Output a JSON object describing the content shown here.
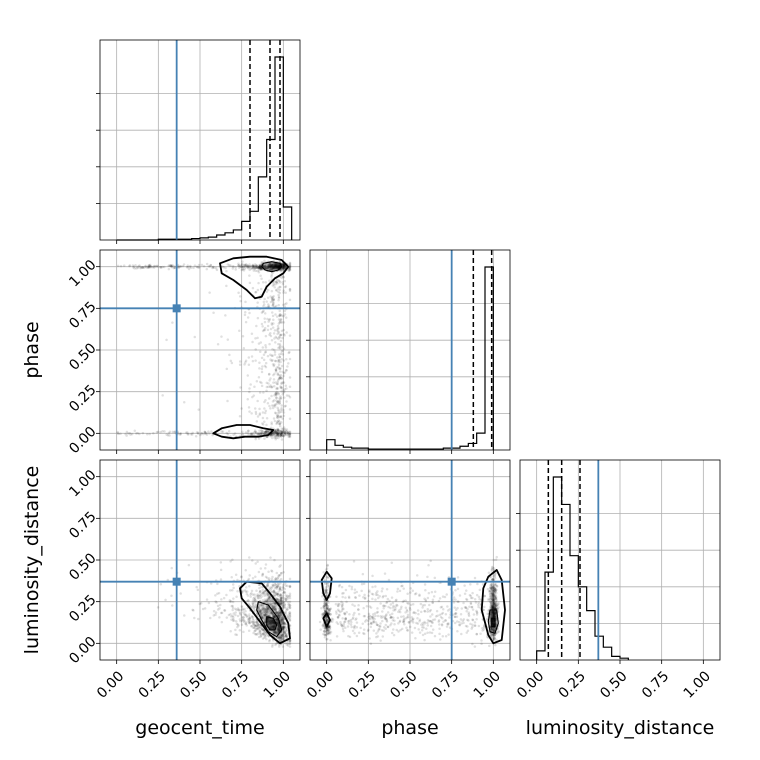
{
  "chart_data": {
    "type": "scatter",
    "kind": "corner-plot",
    "parameters": [
      "geocent_time",
      "phase",
      "luminosity_distance"
    ],
    "truths": {
      "geocent_time": 0.36,
      "phase": 0.75,
      "luminosity_distance": 0.37
    },
    "truth_color": "#4682b4",
    "ticks": [
      0.0,
      0.25,
      0.5,
      0.75,
      1.0
    ],
    "tick_labels": [
      "0.00",
      "0.25",
      "0.50",
      "0.75",
      "1.00"
    ],
    "ranges": {
      "geocent_time": [
        -0.1,
        1.1
      ],
      "phase": [
        -0.1,
        1.1
      ],
      "luminosity_distance": [
        -0.1,
        1.1
      ]
    },
    "histograms": {
      "geocent_time": {
        "bins": [
          0.0,
          0.05,
          0.1,
          0.15,
          0.2,
          0.25,
          0.3,
          0.35,
          0.4,
          0.45,
          0.5,
          0.55,
          0.6,
          0.65,
          0.7,
          0.75,
          0.8,
          0.85,
          0.9,
          0.95,
          1.0,
          1.05
        ],
        "counts": [
          0,
          0,
          0,
          0,
          0,
          1,
          1,
          1,
          1,
          2,
          3,
          4,
          7,
          10,
          14,
          26,
          40,
          88,
          140,
          255,
          46
        ],
        "quantiles": [
          0.8,
          0.92,
          0.98
        ]
      },
      "phase": {
        "bins": [
          0.0,
          0.05,
          0.1,
          0.15,
          0.2,
          0.25,
          0.3,
          0.35,
          0.4,
          0.45,
          0.5,
          0.55,
          0.6,
          0.65,
          0.7,
          0.75,
          0.8,
          0.85,
          0.9,
          0.95,
          1.0
        ],
        "counts": [
          11,
          5,
          3,
          2,
          2,
          1,
          1,
          1,
          1,
          1,
          1,
          1,
          1,
          1,
          2,
          2,
          4,
          7,
          18,
          195
        ],
        "quantiles": [
          0.88,
          0.99
        ]
      },
      "luminosity_distance": {
        "bins": [
          0.0,
          0.05,
          0.1,
          0.15,
          0.2,
          0.25,
          0.3,
          0.35,
          0.4,
          0.45,
          0.5,
          0.55
        ],
        "counts": [
          5,
          48,
          100,
          85,
          57,
          40,
          27,
          13,
          7,
          2,
          1
        ],
        "quantiles": [
          0.07,
          0.15,
          0.26
        ]
      }
    },
    "contours": {
      "phase_vs_geocent_time": [
        {
          "level": 1,
          "points": [
            [
              0.62,
              1.02
            ],
            [
              0.7,
              1.05
            ],
            [
              0.8,
              1.06
            ],
            [
              0.9,
              1.06
            ],
            [
              0.99,
              1.04
            ],
            [
              1.03,
              1.0
            ],
            [
              1.0,
              0.96
            ],
            [
              0.95,
              0.93
            ],
            [
              0.9,
              0.88
            ],
            [
              0.87,
              0.82
            ],
            [
              0.83,
              0.81
            ],
            [
              0.78,
              0.86
            ],
            [
              0.7,
              0.92
            ],
            [
              0.63,
              0.96
            ]
          ]
        },
        {
          "level": 2,
          "points": [
            [
              0.88,
              1.02
            ],
            [
              0.93,
              1.03
            ],
            [
              0.98,
              1.02
            ],
            [
              0.99,
              1.0
            ],
            [
              0.97,
              0.98
            ],
            [
              0.93,
              0.97
            ],
            [
              0.89,
              0.98
            ],
            [
              0.87,
              1.0
            ]
          ]
        },
        {
          "level": 1,
          "points": [
            [
              0.58,
              0.0
            ],
            [
              0.63,
              0.03
            ],
            [
              0.72,
              0.05
            ],
            [
              0.8,
              0.05
            ],
            [
              0.88,
              0.03
            ],
            [
              0.94,
              0.02
            ],
            [
              0.91,
              -0.01
            ],
            [
              0.85,
              -0.02
            ],
            [
              0.77,
              -0.02
            ],
            [
              0.7,
              -0.03
            ],
            [
              0.63,
              -0.02
            ]
          ]
        }
      ],
      "luminosity_distance_vs_geocent_time": [
        {
          "level": 1,
          "points": [
            [
              0.78,
              0.37
            ],
            [
              0.87,
              0.36
            ],
            [
              0.92,
              0.3
            ],
            [
              0.98,
              0.22
            ],
            [
              1.03,
              0.12
            ],
            [
              1.04,
              0.03
            ],
            [
              0.98,
              0.0
            ],
            [
              0.92,
              0.05
            ],
            [
              0.86,
              0.13
            ],
            [
              0.8,
              0.21
            ],
            [
              0.75,
              0.27
            ],
            [
              0.74,
              0.33
            ]
          ]
        },
        {
          "level": 2,
          "points": [
            [
              0.85,
              0.25
            ],
            [
              0.91,
              0.23
            ],
            [
              0.97,
              0.15
            ],
            [
              0.99,
              0.08
            ],
            [
              0.96,
              0.04
            ],
            [
              0.91,
              0.07
            ],
            [
              0.87,
              0.14
            ],
            [
              0.84,
              0.2
            ]
          ]
        },
        {
          "level": 3,
          "points": [
            [
              0.9,
              0.16
            ],
            [
              0.94,
              0.15
            ],
            [
              0.96,
              0.11
            ],
            [
              0.95,
              0.08
            ],
            [
              0.92,
              0.08
            ],
            [
              0.9,
              0.11
            ]
          ]
        }
      ],
      "luminosity_distance_vs_phase": [
        {
          "level": 1,
          "points": [
            [
              -0.03,
              0.38
            ],
            [
              0.0,
              0.43
            ],
            [
              0.03,
              0.39
            ],
            [
              0.02,
              0.3
            ],
            [
              0.0,
              0.26
            ],
            [
              -0.02,
              0.3
            ]
          ]
        },
        {
          "level": 1,
          "points": [
            [
              -0.02,
              0.15
            ],
            [
              0.0,
              0.18
            ],
            [
              0.02,
              0.14
            ],
            [
              0.0,
              0.1
            ]
          ]
        },
        {
          "level": 1,
          "points": [
            [
              0.97,
              0.4
            ],
            [
              1.02,
              0.44
            ],
            [
              1.05,
              0.38
            ],
            [
              1.07,
              0.2
            ],
            [
              1.05,
              0.02
            ],
            [
              1.0,
              0.0
            ],
            [
              0.97,
              0.05
            ],
            [
              0.93,
              0.2
            ],
            [
              0.94,
              0.33
            ]
          ]
        },
        {
          "level": 2,
          "points": [
            [
              0.98,
              0.2
            ],
            [
              1.02,
              0.2
            ],
            [
              1.03,
              0.12
            ],
            [
              1.01,
              0.06
            ],
            [
              0.98,
              0.07
            ],
            [
              0.97,
              0.13
            ]
          ]
        },
        {
          "level": 3,
          "points": [
            [
              0.99,
              0.15
            ],
            [
              1.01,
              0.15
            ],
            [
              1.01,
              0.1
            ],
            [
              0.99,
              0.1
            ]
          ]
        }
      ]
    }
  }
}
